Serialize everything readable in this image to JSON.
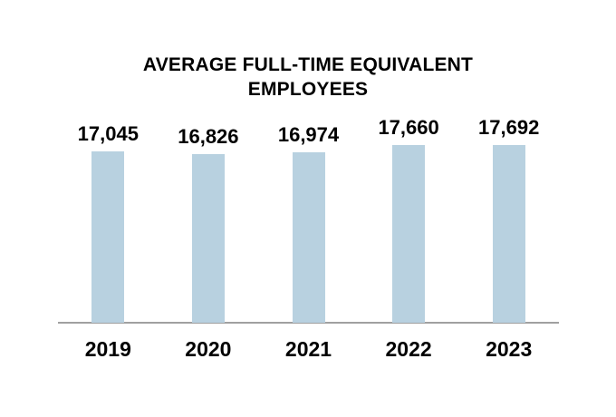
{
  "chart_data": {
    "type": "bar",
    "title": "AVERAGE FULL-TIME EQUIVALENT EMPLOYEES",
    "title_lines": [
      "AVERAGE FULL-TIME EQUIVALENT",
      "EMPLOYEES"
    ],
    "categories": [
      "2019",
      "2020",
      "2021",
      "2022",
      "2023"
    ],
    "values": [
      17045,
      16826,
      16974,
      17660,
      17692
    ],
    "value_labels": [
      "17,045",
      "16,826",
      "16,974",
      "17,660",
      "17,692"
    ],
    "xlabel": "",
    "ylabel": "",
    "baseline": 0,
    "grid": false,
    "legend": false,
    "y_axis_visible": false,
    "data_label_position": "outside-end",
    "colors": {
      "bar_fill": "#b8d1e0",
      "axis_line": "#a0a0a0",
      "text": "#000000"
    }
  }
}
